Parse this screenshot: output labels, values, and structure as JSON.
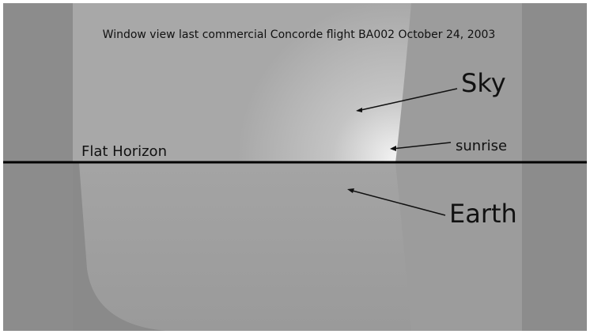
{
  "caption": "Window view last commercial Concorde flight BA002 October 24, 2003",
  "labels": {
    "sky": "Sky",
    "sunrise": "sunrise",
    "horizon": "Flat Horizon",
    "earth": "Earth"
  }
}
